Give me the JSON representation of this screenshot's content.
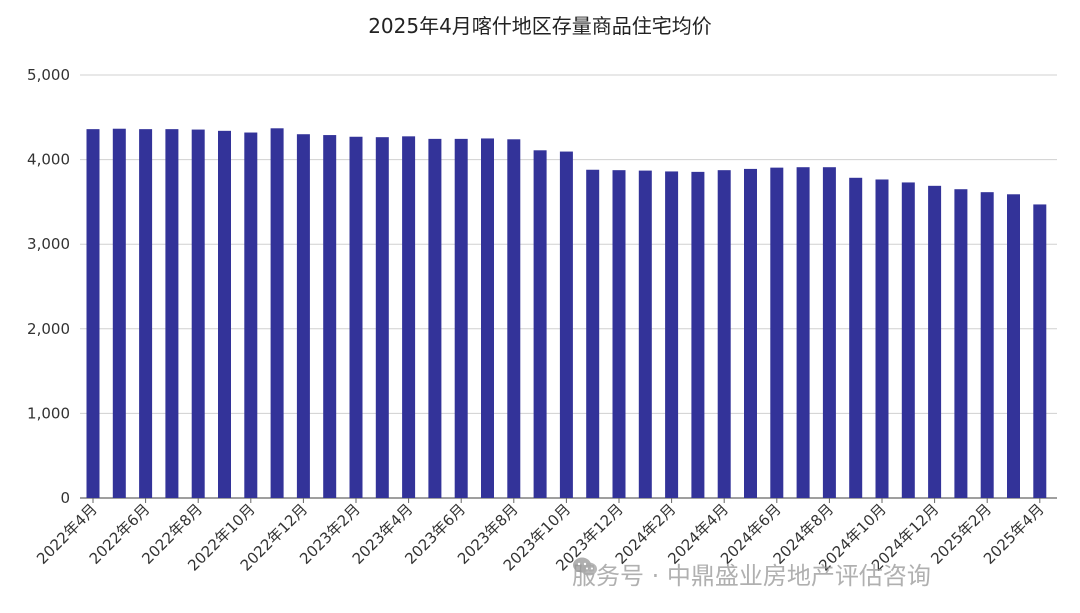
{
  "chart_data": {
    "type": "bar",
    "title": "2025年4月喀什地区存量商品住宅均价",
    "categories": [
      "2022年4月",
      "2022年5月",
      "2022年6月",
      "2022年7月",
      "2022年8月",
      "2022年9月",
      "2022年10月",
      "2022年11月",
      "2022年12月",
      "2023年1月",
      "2023年2月",
      "2023年3月",
      "2023年4月",
      "2023年5月",
      "2023年6月",
      "2023年7月",
      "2023年8月",
      "2023年9月",
      "2023年10月",
      "2023年11月",
      "2023年12月",
      "2024年1月",
      "2024年2月",
      "2024年3月",
      "2024年4月",
      "2024年5月",
      "2024年6月",
      "2024年7月",
      "2024年8月",
      "2024年9月",
      "2024年10月",
      "2024年11月",
      "2024年12月",
      "2025年1月",
      "2025年2月",
      "2025年3月",
      "2025年4月"
    ],
    "tick_labels": [
      "2022年4月",
      "2022年6月",
      "2022年8月",
      "2022年10月",
      "2022年12月",
      "2023年2月",
      "2023年4月",
      "2023年6月",
      "2023年8月",
      "2023年10月",
      "2023年12月",
      "2024年2月",
      "2024年4月",
      "2024年6月",
      "2024年8月",
      "2024年10月",
      "2024年12月",
      "2025年2月",
      "2025年4月"
    ],
    "values": [
      4360,
      4365,
      4360,
      4360,
      4355,
      4340,
      4320,
      4370,
      4300,
      4290,
      4270,
      4265,
      4275,
      4245,
      4245,
      4250,
      4240,
      4110,
      4095,
      3880,
      3875,
      3870,
      3860,
      3855,
      3875,
      3890,
      3905,
      3910,
      3910,
      3785,
      3765,
      3730,
      3690,
      3650,
      3615,
      3590,
      3470
    ],
    "ylim": [
      0,
      5000
    ],
    "yticks": [
      "0",
      "1,000",
      "2,000",
      "3,000",
      "4,000",
      "5,000"
    ],
    "ytick_values": [
      0,
      1000,
      2000,
      3000,
      4000,
      5000
    ],
    "bar_color": "#333399",
    "grid_color": "#d0d0d0",
    "grid": true,
    "legend": "none"
  },
  "watermark": {
    "text": "服务号 · 中鼎盛业房地产评估咨询",
    "icon": "wechat-icon"
  }
}
